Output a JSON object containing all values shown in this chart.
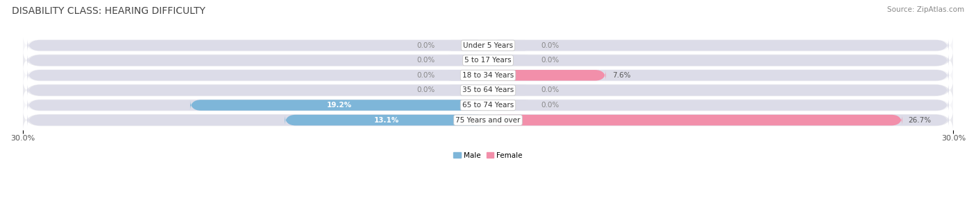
{
  "title": "DISABILITY CLASS: HEARING DIFFICULTY",
  "source": "Source: ZipAtlas.com",
  "categories": [
    "Under 5 Years",
    "5 to 17 Years",
    "18 to 34 Years",
    "35 to 64 Years",
    "65 to 74 Years",
    "75 Years and over"
  ],
  "male_values": [
    0.0,
    0.0,
    0.0,
    0.0,
    19.2,
    13.1
  ],
  "female_values": [
    0.0,
    0.0,
    7.6,
    0.0,
    0.0,
    26.7
  ],
  "x_min": -30.0,
  "x_max": 30.0,
  "male_color": "#7eb6d9",
  "female_color": "#f28faa",
  "male_label": "Male",
  "female_label": "Female",
  "bar_bg_color": "#dcdce8",
  "row_bg_light": "#f5f5f8",
  "row_bg_dark": "#eaeaef",
  "title_fontsize": 10,
  "source_fontsize": 7.5,
  "label_fontsize": 7.5,
  "value_fontsize": 7.5,
  "axis_label_fontsize": 8,
  "min_bar_val": 3.0,
  "figsize": [
    14.06,
    3.05
  ]
}
